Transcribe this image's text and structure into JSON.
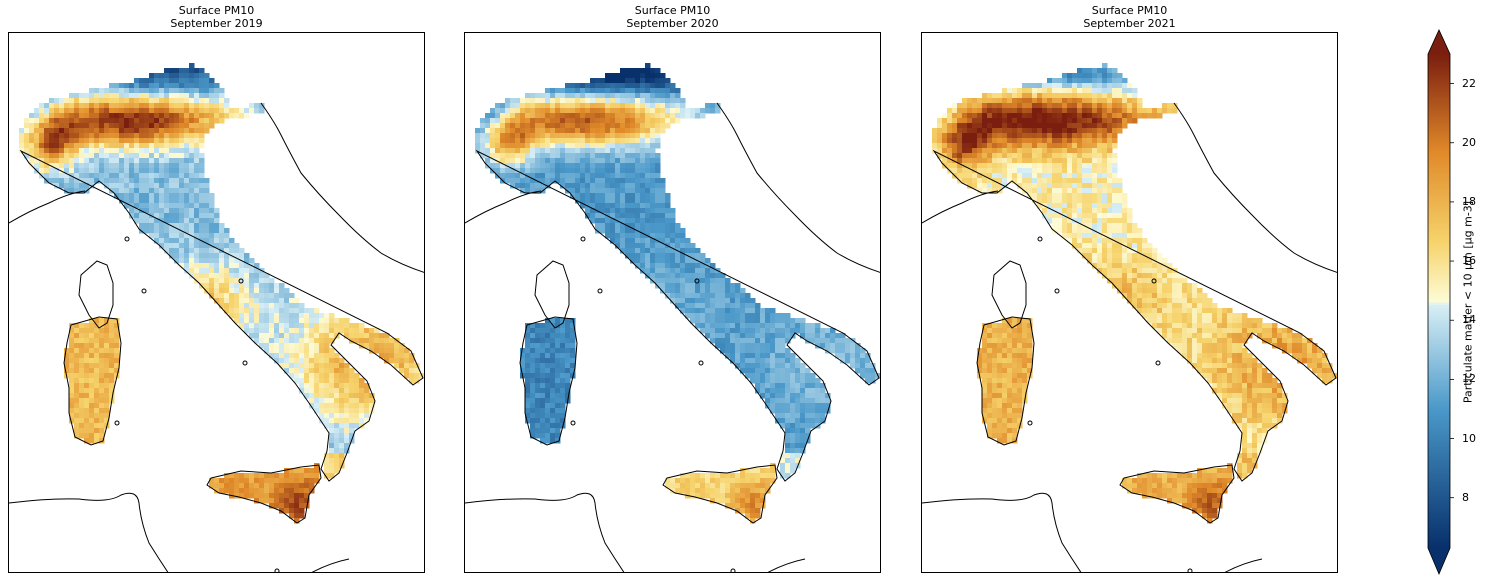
{
  "panels": [
    {
      "title_line1": "Surface PM10",
      "title_line2": "September 2019",
      "scenario": "mixed"
    },
    {
      "title_line1": "Surface PM10",
      "title_line2": "September 2020",
      "scenario": "clean"
    },
    {
      "title_line1": "Surface PM10",
      "title_line2": "September 2021",
      "scenario": "polluted"
    }
  ],
  "colorbar": {
    "label": "Particulate matter < 10 µm [µg m-3]",
    "min": 6.3,
    "max": 23.0,
    "extend": "both",
    "ticks": [
      {
        "value": 8,
        "label": "8"
      },
      {
        "value": 10,
        "label": "10"
      },
      {
        "value": 12,
        "label": "12"
      },
      {
        "value": 14,
        "label": "14"
      },
      {
        "value": 16,
        "label": "16"
      },
      {
        "value": 18,
        "label": "18"
      },
      {
        "value": 20,
        "label": "20"
      },
      {
        "value": 22,
        "label": "22"
      }
    ],
    "colors": {
      "low": "#08306b",
      "mid_low": "#4a98c9",
      "mid": "#d7eef5",
      "mid_high": "#f6d36b",
      "high": "#e08a2a",
      "top": "#7a1e0f"
    }
  }
}
